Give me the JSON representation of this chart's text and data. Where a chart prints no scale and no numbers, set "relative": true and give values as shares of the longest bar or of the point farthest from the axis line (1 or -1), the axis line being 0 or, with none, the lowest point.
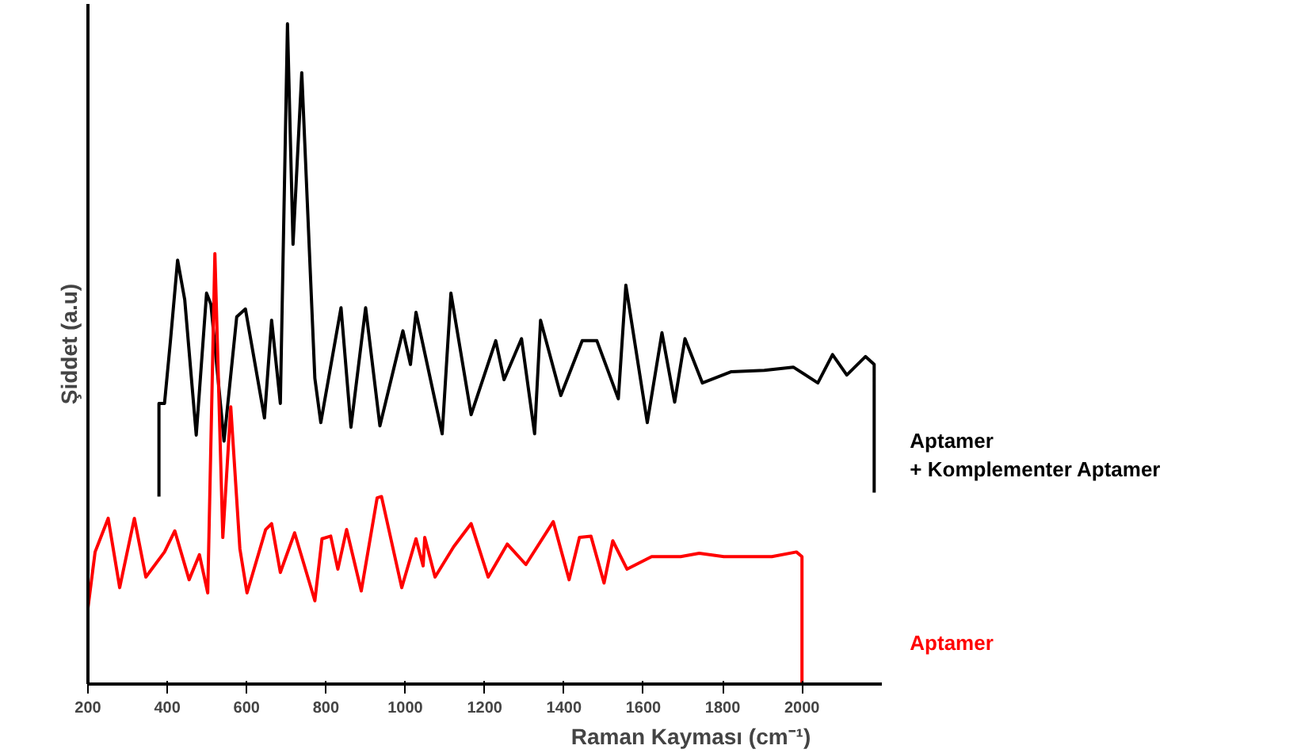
{
  "chart_data": {
    "type": "line",
    "xlabel": "Raman Kayması (cm⁻¹)",
    "ylabel": "Şiddet (a.u)",
    "relative": true,
    "xlim": [
      200,
      2200
    ],
    "xticks": [
      200,
      400,
      600,
      800,
      1000,
      1200,
      1400,
      1600,
      1800,
      2000
    ],
    "grid": false,
    "legend": false,
    "series": [
      {
        "name": "Aptamer\n+ Komplementer Aptamer",
        "color": "#000000",
        "x": [
          379,
          379,
          393,
          408,
          426,
          444,
          473,
          499,
          510,
          543,
          575,
          597,
          645,
          663,
          685,
          703,
          717,
          739,
          772,
          787,
          838,
          863,
          900,
          936,
          994,
          1013,
          1027,
          1093,
          1115,
          1166,
          1228,
          1249,
          1293,
          1326,
          1341,
          1392,
          1446,
          1483,
          1537,
          1556,
          1610,
          1647,
          1679,
          1705,
          1749,
          1822,
          1905,
          1978,
          2040,
          2077,
          2113,
          2160,
          2182,
          2182
        ],
        "values": [
          0.284,
          0.425,
          0.425,
          0.52,
          0.642,
          0.582,
          0.377,
          0.592,
          0.575,
          0.368,
          0.556,
          0.568,
          0.403,
          0.551,
          0.425,
          1.0,
          0.666,
          0.926,
          0.463,
          0.396,
          0.57,
          0.389,
          0.57,
          0.391,
          0.535,
          0.484,
          0.563,
          0.379,
          0.592,
          0.408,
          0.52,
          0.461,
          0.523,
          0.379,
          0.551,
          0.437,
          0.52,
          0.52,
          0.432,
          0.604,
          0.396,
          0.532,
          0.427,
          0.523,
          0.456,
          0.473,
          0.475,
          0.48,
          0.456,
          0.499,
          0.468,
          0.496,
          0.484,
          0.29
        ]
      },
      {
        "name": "Aptamer",
        "color": "#ff0000",
        "x": [
          200,
          200,
          218,
          229,
          251,
          280,
          317,
          346,
          393,
          419,
          455,
          481,
          502,
          520,
          540,
          560,
          583,
          601,
          648,
          663,
          685,
          721,
          772,
          790,
          812,
          830,
          852,
          889,
          929,
          940,
          991,
          1027,
          1045,
          1049,
          1075,
          1122,
          1166,
          1209,
          1257,
          1304,
          1373,
          1413,
          1439,
          1468,
          1501,
          1523,
          1559,
          1621,
          1694,
          1741,
          1803,
          1865,
          1924,
          1986,
          2000,
          2000
        ],
        "values": [
          0,
          0.115,
          0.2,
          0.217,
          0.251,
          0.146,
          0.251,
          0.162,
          0.2,
          0.232,
          0.158,
          0.196,
          0.138,
          0.652,
          0.222,
          0.42,
          0.205,
          0.138,
          0.234,
          0.243,
          0.169,
          0.229,
          0.126,
          0.22,
          0.224,
          0.174,
          0.234,
          0.141,
          0.282,
          0.284,
          0.146,
          0.22,
          0.179,
          0.222,
          0.162,
          0.208,
          0.243,
          0.162,
          0.212,
          0.181,
          0.246,
          0.158,
          0.222,
          0.224,
          0.153,
          0.217,
          0.174,
          0.193,
          0.193,
          0.198,
          0.193,
          0.193,
          0.193,
          0.2,
          0.193,
          0
        ]
      }
    ]
  }
}
